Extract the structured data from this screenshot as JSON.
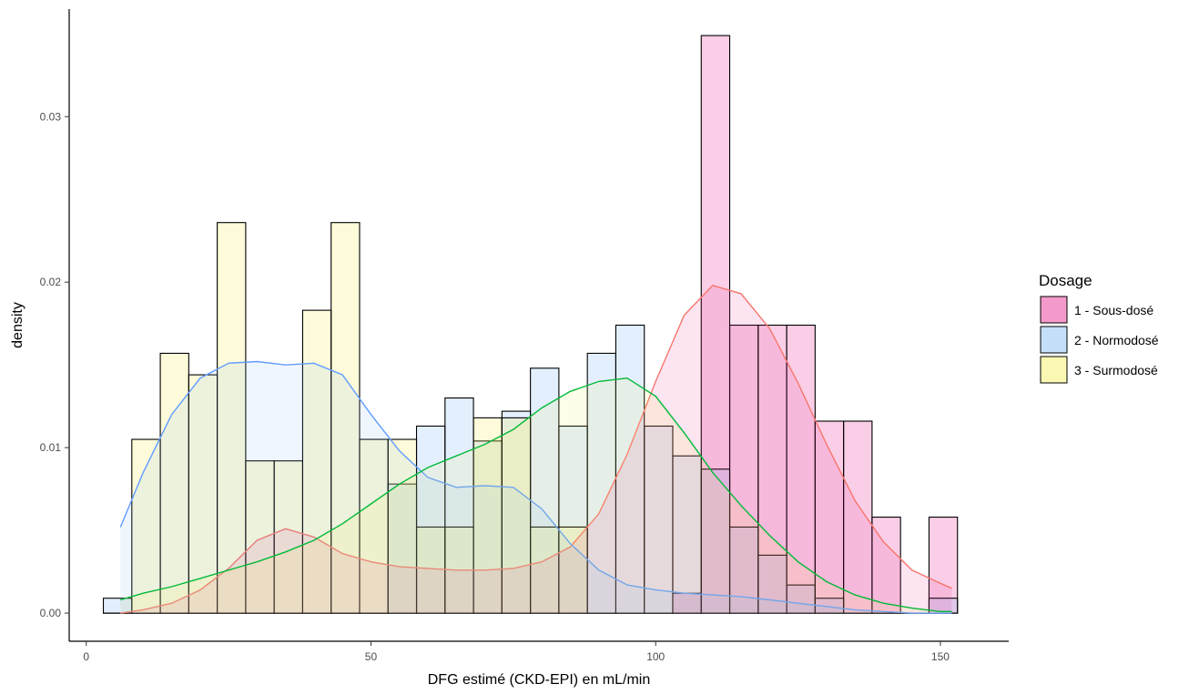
{
  "chart_data": {
    "type": "histogram",
    "xlabel": "DFG estimé (CKD-EPI) en mL/min",
    "ylabel": "density",
    "xlim": [
      -3,
      162
    ],
    "ylim": [
      -0.0017,
      0.0365
    ],
    "x_ticks": [
      0,
      50,
      100,
      150
    ],
    "y_ticks": [
      0.0,
      0.01,
      0.02,
      0.03
    ],
    "x_tick_labels": [
      "0",
      "50",
      "100",
      "150"
    ],
    "y_tick_labels": [
      "0.00",
      "0.01",
      "0.02",
      "0.03"
    ],
    "grid": false,
    "legend": {
      "title": "Dosage",
      "position": "right"
    },
    "bins": {
      "start": 3,
      "width": 5,
      "count": 30
    },
    "series": [
      {
        "name": "1 - Sous-dosé",
        "color": "#F8766D",
        "fill": "#E61E8C",
        "fill_opacity": 0.22,
        "histogram": [
          0,
          0,
          0,
          0,
          0,
          0,
          0,
          0,
          0,
          0,
          0,
          0,
          0,
          0,
          0,
          0,
          0,
          0,
          0,
          0,
          0.0012,
          0.0349,
          0.0174,
          0.0174,
          0.0174,
          0.0116,
          0.0116,
          0.0058,
          0,
          0.0058
        ],
        "density": [
          [
            6,
            0.0
          ],
          [
            10,
            0.0002
          ],
          [
            15,
            0.0006
          ],
          [
            20,
            0.0014
          ],
          [
            25,
            0.0027
          ],
          [
            30,
            0.0044
          ],
          [
            35,
            0.0051
          ],
          [
            40,
            0.0046
          ],
          [
            45,
            0.0036
          ],
          [
            50,
            0.0031
          ],
          [
            55,
            0.0028
          ],
          [
            60,
            0.0027
          ],
          [
            65,
            0.0026
          ],
          [
            70,
            0.0026
          ],
          [
            75,
            0.0027
          ],
          [
            80,
            0.0031
          ],
          [
            85,
            0.004
          ],
          [
            90,
            0.006
          ],
          [
            95,
            0.0096
          ],
          [
            100,
            0.014
          ],
          [
            105,
            0.018
          ],
          [
            110,
            0.0198
          ],
          [
            115,
            0.0193
          ],
          [
            120,
            0.0172
          ],
          [
            125,
            0.0139
          ],
          [
            130,
            0.0102
          ],
          [
            135,
            0.0068
          ],
          [
            140,
            0.0043
          ],
          [
            145,
            0.0026
          ],
          [
            150,
            0.0018
          ],
          [
            152,
            0.0015
          ]
        ]
      },
      {
        "name": "2 - Normodosé",
        "color": "#619CFF",
        "fill": "#7EB8F5",
        "fill_opacity": 0.22,
        "histogram": [
          0.0009,
          0,
          0,
          0,
          0,
          0,
          0,
          0,
          0,
          0,
          0.0078,
          0.0113,
          0.013,
          0.0104,
          0.0122,
          0.0148,
          0.0113,
          0.0157,
          0.0174,
          0.0113,
          0.0095,
          0.0087,
          0.0052,
          0.0035,
          0.0017,
          0.0009,
          0,
          0,
          0,
          0.0009
        ],
        "density": [
          [
            6,
            0.0052
          ],
          [
            10,
            0.0085
          ],
          [
            15,
            0.012
          ],
          [
            20,
            0.0142
          ],
          [
            25,
            0.0151
          ],
          [
            30,
            0.0152
          ],
          [
            35,
            0.015
          ],
          [
            40,
            0.0151
          ],
          [
            45,
            0.0144
          ],
          [
            50,
            0.012
          ],
          [
            55,
            0.0098
          ],
          [
            60,
            0.0082
          ],
          [
            65,
            0.0076
          ],
          [
            70,
            0.0077
          ],
          [
            75,
            0.0076
          ],
          [
            80,
            0.0063
          ],
          [
            85,
            0.0042
          ],
          [
            90,
            0.0026
          ],
          [
            95,
            0.0017
          ],
          [
            100,
            0.0014
          ],
          [
            105,
            0.0012
          ],
          [
            110,
            0.0011
          ],
          [
            115,
            0.001
          ],
          [
            120,
            0.0008
          ],
          [
            125,
            0.0006
          ],
          [
            130,
            0.0004
          ],
          [
            135,
            0.0002
          ],
          [
            140,
            0.0001
          ],
          [
            145,
            0.0
          ],
          [
            150,
            0.0
          ],
          [
            152,
            0.0
          ]
        ]
      },
      {
        "name": "3 - Surmodosé",
        "color": "#00BA38",
        "fill": "#F5EF55",
        "fill_opacity": 0.22,
        "histogram": [
          0,
          0.0105,
          0.0157,
          0.0144,
          0.0236,
          0.0092,
          0.0092,
          0.0183,
          0.0236,
          0.0105,
          0.0105,
          0.0052,
          0.0052,
          0.0118,
          0.0118,
          0.0052,
          0.0052,
          0,
          0,
          0,
          0,
          0,
          0,
          0,
          0,
          0,
          0,
          0,
          0,
          0
        ],
        "density": [
          [
            6,
            0.0008
          ],
          [
            10,
            0.0012
          ],
          [
            15,
            0.0016
          ],
          [
            20,
            0.0021
          ],
          [
            25,
            0.0026
          ],
          [
            30,
            0.0031
          ],
          [
            35,
            0.0037
          ],
          [
            40,
            0.0044
          ],
          [
            45,
            0.0054
          ],
          [
            50,
            0.0066
          ],
          [
            55,
            0.0078
          ],
          [
            60,
            0.0088
          ],
          [
            65,
            0.0095
          ],
          [
            70,
            0.0102
          ],
          [
            75,
            0.0111
          ],
          [
            80,
            0.0124
          ],
          [
            85,
            0.0134
          ],
          [
            90,
            0.014
          ],
          [
            95,
            0.0142
          ],
          [
            100,
            0.0131
          ],
          [
            105,
            0.0109
          ],
          [
            110,
            0.0085
          ],
          [
            115,
            0.0065
          ],
          [
            120,
            0.0047
          ],
          [
            125,
            0.0031
          ],
          [
            130,
            0.0019
          ],
          [
            135,
            0.0011
          ],
          [
            140,
            0.0006
          ],
          [
            145,
            0.0003
          ],
          [
            150,
            0.0001
          ],
          [
            152,
            0.0001
          ]
        ]
      }
    ]
  }
}
